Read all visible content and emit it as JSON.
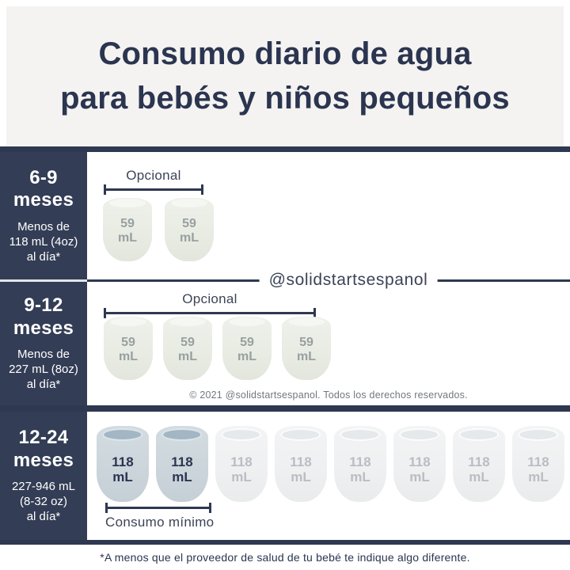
{
  "title": {
    "line1": "Consumo diario de agua",
    "line2": "para bebés y niños pequeños"
  },
  "watermark": "@solidstartsespanol",
  "rows": [
    {
      "age": "6-9\nmeses",
      "amount": "Menos de\n118 mL (4oz)\nal día*",
      "bracket_label": "Opcional",
      "cups": [
        {
          "value": "59",
          "unit": "mL"
        },
        {
          "value": "59",
          "unit": "mL"
        }
      ]
    },
    {
      "age": "9-12\nmeses",
      "amount": "Menos de\n227 mL (8oz)\nal día*",
      "bracket_label": "Opcional",
      "copyright": "© 2021 @solidstartsespanol. Todos los derechos reservados.",
      "cups": [
        {
          "value": "59",
          "unit": "mL"
        },
        {
          "value": "59",
          "unit": "mL"
        },
        {
          "value": "59",
          "unit": "mL"
        },
        {
          "value": "59",
          "unit": "mL"
        }
      ]
    },
    {
      "age": "12-24\nmeses",
      "amount": "227-946 mL\n(8-32 oz)\nal día*",
      "bracket_label": "Consumo mínimo",
      "cups": [
        {
          "value": "118",
          "unit": "mL",
          "highlight": true
        },
        {
          "value": "118",
          "unit": "mL",
          "highlight": true
        },
        {
          "value": "118",
          "unit": "mL"
        },
        {
          "value": "118",
          "unit": "mL"
        },
        {
          "value": "118",
          "unit": "mL"
        },
        {
          "value": "118",
          "unit": "mL"
        },
        {
          "value": "118",
          "unit": "mL"
        },
        {
          "value": "118",
          "unit": "mL"
        }
      ]
    }
  ],
  "footnote": "*A menos que el proveedor de salud de tu bebé te indique algo diferente.",
  "colors": {
    "navy": "#2e3851",
    "sidebar_bg": "#333d55",
    "header_bg": "#f4f3f1",
    "cup_green": "#e8ece3",
    "cup_blue_highlight": "#ccd5db",
    "cup_white": "#eff0f1",
    "cup_text_gray": "#98a0a0",
    "cup_text_light": "#b9bec3"
  }
}
